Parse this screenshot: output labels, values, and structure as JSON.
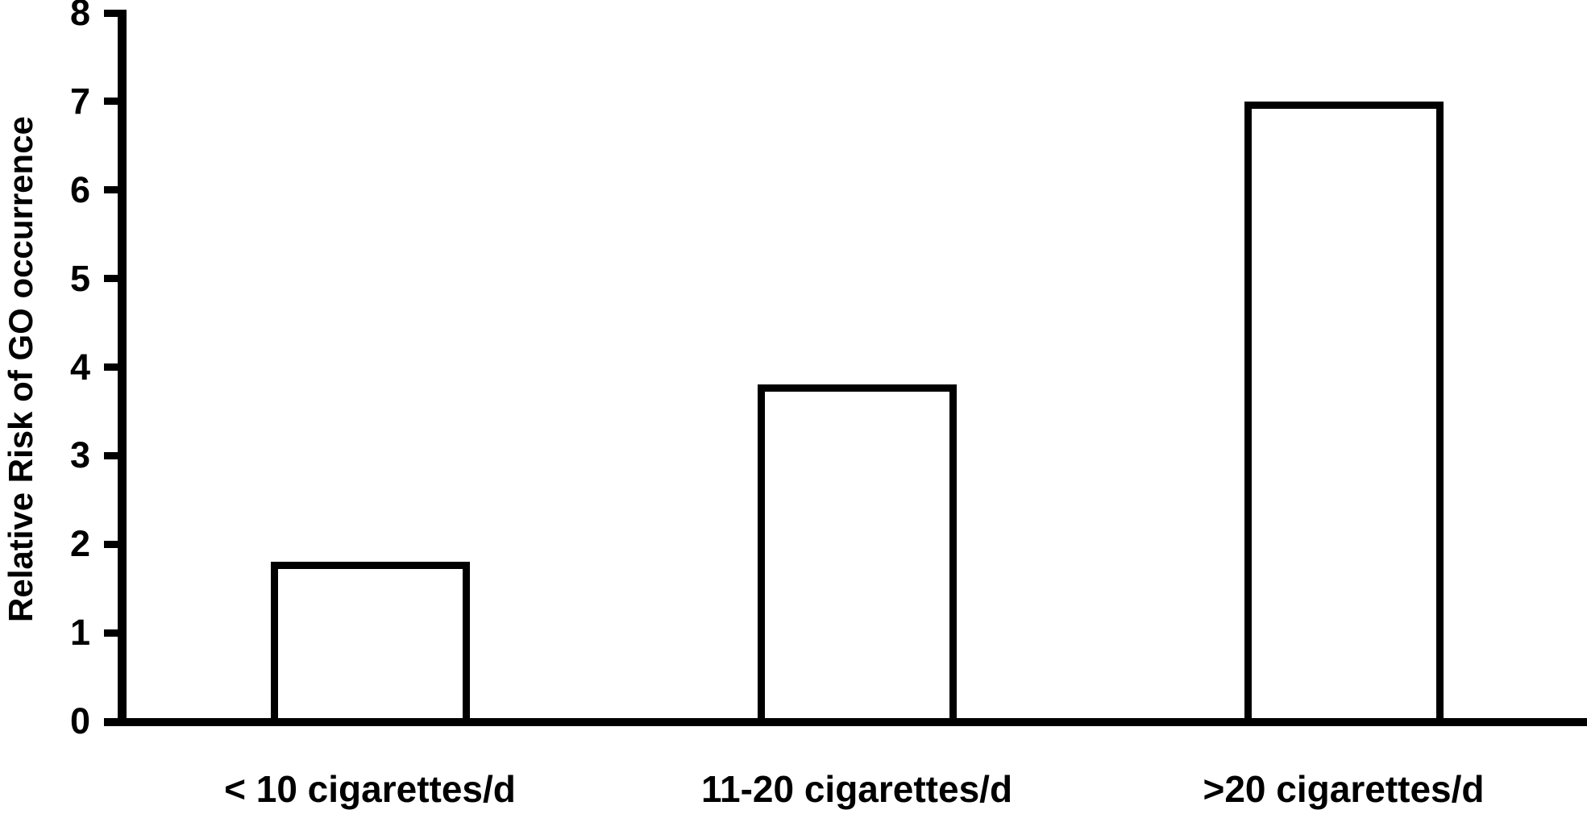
{
  "chart_data": {
    "type": "bar",
    "title": "",
    "xlabel": "",
    "ylabel": "Relative Risk of GO occurrence",
    "categories": [
      "< 10 cigarettes/d",
      "11-20 cigarettes/d",
      ">20 cigarettes/d"
    ],
    "values": [
      1.8,
      3.8,
      7
    ],
    "ylim": [
      0,
      8
    ],
    "yticks": [
      0,
      1,
      2,
      3,
      4,
      5,
      6,
      7,
      8
    ],
    "grid": false,
    "legend": false,
    "colors": {
      "bar_fill": "#ffffff",
      "bar_border": "#000000",
      "axis": "#000000",
      "text": "#000000",
      "background": "#ffffff"
    }
  }
}
